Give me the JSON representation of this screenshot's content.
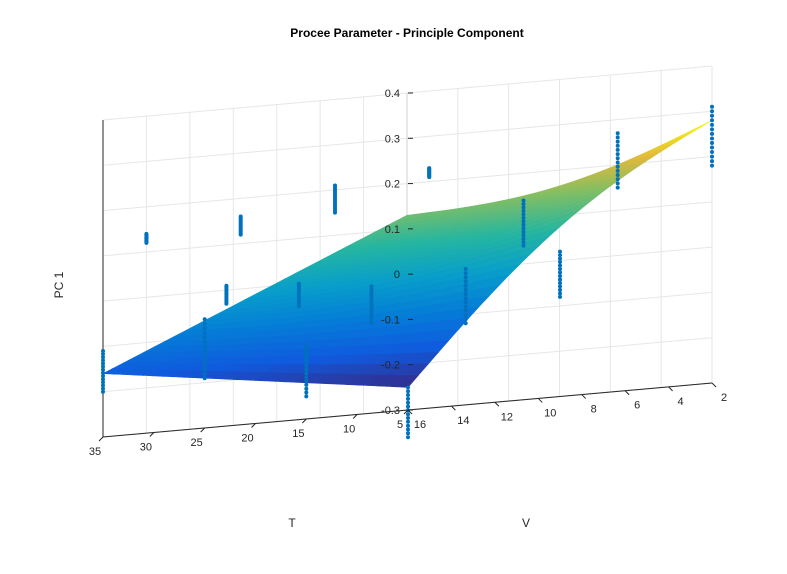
{
  "chart_data": {
    "type": "surface3d",
    "title": "Procee Parameter - Principle Component",
    "xlabel": "T",
    "ylabel": "V",
    "zlabel": "PC 1",
    "xlim": [
      5,
      35
    ],
    "ylim": [
      2,
      16
    ],
    "zlim": [
      -0.3,
      0.4
    ],
    "x_ticks": [
      5,
      10,
      15,
      20,
      25,
      30,
      35
    ],
    "y_ticks": [
      2,
      4,
      6,
      8,
      10,
      12,
      14,
      16
    ],
    "z_ticks": [
      -0.3,
      -0.2,
      -0.1,
      0,
      0.1,
      0.2,
      0.3,
      0.4
    ],
    "x_tick_labels": [
      "5",
      "10",
      "15",
      "20",
      "25",
      "30",
      "35"
    ],
    "y_tick_labels": [
      "2",
      "4",
      "6",
      "8",
      "10",
      "12",
      "14",
      "16"
    ],
    "z_tick_labels": [
      "-0.3",
      "-0.2",
      "-0.1",
      "0",
      "0.1",
      "0.2",
      "0.3",
      "0.4"
    ],
    "grid": true,
    "colormap": "parula",
    "surface_color": "#0072BD",
    "surface_corners": {
      "T5_V2": 0.28,
      "T35_V2": 0.13,
      "T5_V16": -0.25,
      "T35_V16": -0.16
    },
    "scatter_color": "#0072BD",
    "scatter_groups": [
      {
        "T": 5,
        "V": 2,
        "z_min": 0.18,
        "z_max": 0.31
      },
      {
        "T": 10,
        "V": 4,
        "z_min": 0.15,
        "z_max": 0.27
      },
      {
        "T": 15,
        "V": 6,
        "z_min": 0.04,
        "z_max": 0.14
      },
      {
        "T": 20,
        "V": 8,
        "z_min": 0.21,
        "z_max": 0.23
      },
      {
        "T": 25,
        "V": 10,
        "z_min": 0.15,
        "z_max": 0.21
      },
      {
        "T": 30,
        "V": 12,
        "z_min": 0.12,
        "z_max": 0.16
      },
      {
        "T": 35,
        "V": 14,
        "z_min": 0.12,
        "z_max": 0.14
      },
      {
        "T": 5,
        "V": 9,
        "z_min": -0.08,
        "z_max": 0.02
      },
      {
        "T": 10,
        "V": 11,
        "z_min": -0.12,
        "z_max": 0.0
      },
      {
        "T": 15,
        "V": 13,
        "z_min": -0.1,
        "z_max": -0.02
      },
      {
        "T": 20,
        "V": 14,
        "z_min": -0.05,
        "z_max": 0.0
      },
      {
        "T": 25,
        "V": 15,
        "z_min": -0.03,
        "z_max": 0.01
      },
      {
        "T": 5,
        "V": 16,
        "z_min": -0.36,
        "z_max": -0.25
      },
      {
        "T": 15,
        "V": 16,
        "z_min": -0.25,
        "z_max": -0.14
      },
      {
        "T": 25,
        "V": 16,
        "z_min": -0.19,
        "z_max": -0.06
      },
      {
        "T": 35,
        "V": 16,
        "z_min": -0.2,
        "z_max": -0.11
      }
    ]
  }
}
